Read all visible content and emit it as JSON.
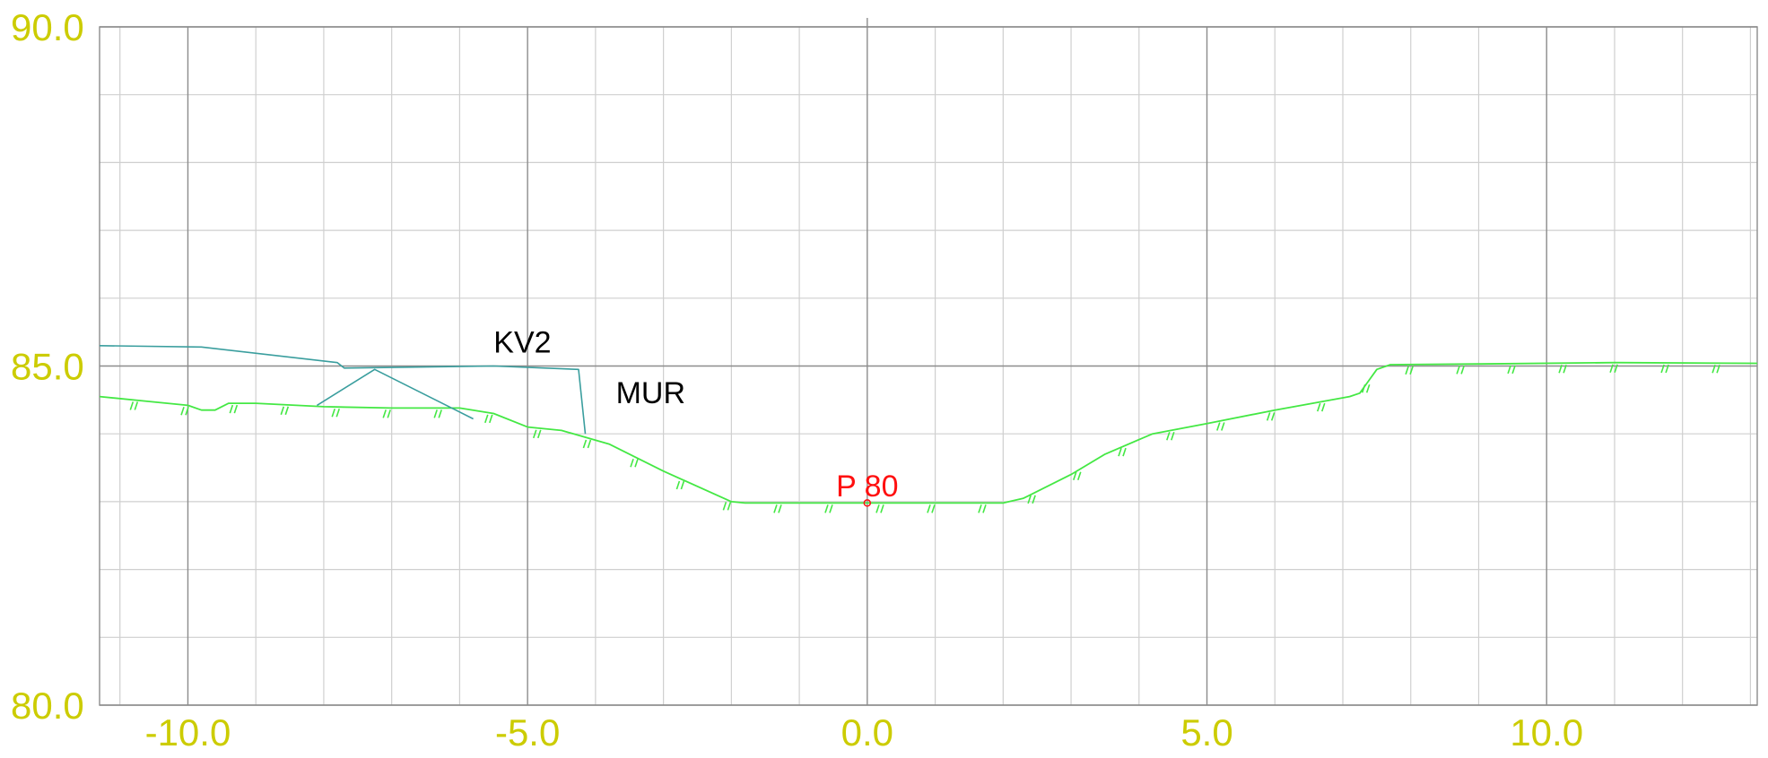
{
  "chart_data": {
    "type": "line",
    "title": "",
    "xlabel": "",
    "ylabel": "",
    "xlim": [
      -11.3,
      13.1
    ],
    "ylim": [
      80.0,
      90.0
    ],
    "x_ticks": [
      -10.0,
      -5.0,
      0.0,
      5.0,
      10.0
    ],
    "x_tick_labels": [
      "-10.0",
      "-5.0",
      "0.0",
      "5.0",
      "10.0"
    ],
    "y_ticks": [
      80.0,
      85.0,
      90.0
    ],
    "y_tick_labels": [
      "80.0",
      "85.0",
      "90.0"
    ],
    "grid": true,
    "grid_minor_step": 1,
    "grid_major_x": [
      -10,
      -5,
      0,
      5,
      10
    ],
    "grid_major_y": [
      80,
      85,
      90
    ],
    "series": [
      {
        "color": "#44e844",
        "style": "terrain",
        "points": [
          [
            -11.3,
            84.55
          ],
          [
            -10.6,
            84.48
          ],
          [
            -10.0,
            84.42
          ],
          [
            -9.8,
            84.35
          ],
          [
            -9.6,
            84.35
          ],
          [
            -9.4,
            84.45
          ],
          [
            -9.0,
            84.45
          ],
          [
            -8.0,
            84.4
          ],
          [
            -7.0,
            84.38
          ],
          [
            -6.0,
            84.38
          ],
          [
            -5.5,
            84.3
          ],
          [
            -5.0,
            84.1
          ],
          [
            -4.5,
            84.05
          ],
          [
            -4.15,
            83.95
          ],
          [
            -3.8,
            83.85
          ],
          [
            -3.0,
            83.45
          ],
          [
            -2.0,
            83.0
          ],
          [
            -1.8,
            82.98
          ],
          [
            2.0,
            82.98
          ],
          [
            2.3,
            83.05
          ],
          [
            3.0,
            83.4
          ],
          [
            3.5,
            83.7
          ],
          [
            4.2,
            84.0
          ],
          [
            5.0,
            84.15
          ],
          [
            6.0,
            84.35
          ],
          [
            7.1,
            84.55
          ],
          [
            7.25,
            84.6
          ],
          [
            7.5,
            84.95
          ],
          [
            7.7,
            85.02
          ],
          [
            9.0,
            85.03
          ],
          [
            11.0,
            85.05
          ],
          [
            13.1,
            85.04
          ]
        ]
      },
      {
        "color": "#3a9e9e",
        "style": "structure",
        "name": "KV2",
        "points": [
          [
            -11.3,
            85.3
          ],
          [
            -9.8,
            85.28
          ],
          [
            -7.8,
            85.05
          ],
          [
            -7.7,
            84.97
          ],
          [
            -5.5,
            85.0
          ],
          [
            -4.25,
            84.95
          ],
          [
            -4.15,
            84.0
          ]
        ]
      },
      {
        "color": "#3a9e9e",
        "style": "structure",
        "points": [
          [
            -8.1,
            84.42
          ],
          [
            -7.25,
            84.95
          ],
          [
            -5.8,
            84.22
          ]
        ]
      }
    ],
    "annotations": [
      {
        "text": "KV2",
        "x": -5.5,
        "y": 85.2,
        "color": "#000000"
      },
      {
        "text": "MUR",
        "x": -3.7,
        "y": 84.45,
        "color": "#000000"
      },
      {
        "text": "P 80",
        "x": 0.0,
        "y": 83.08,
        "color": "#ff1010"
      }
    ],
    "points_of_interest": [
      {
        "x": 0.0,
        "y": 82.98,
        "color": "#ff1010"
      }
    ],
    "colors": {
      "tick_labels": "#cccc00",
      "grid_minor": "#cfcfcf",
      "grid_major": "#8c8c8c",
      "terrain": "#44e844",
      "structure": "#3a9e9e",
      "point_label": "#ff1010"
    }
  }
}
